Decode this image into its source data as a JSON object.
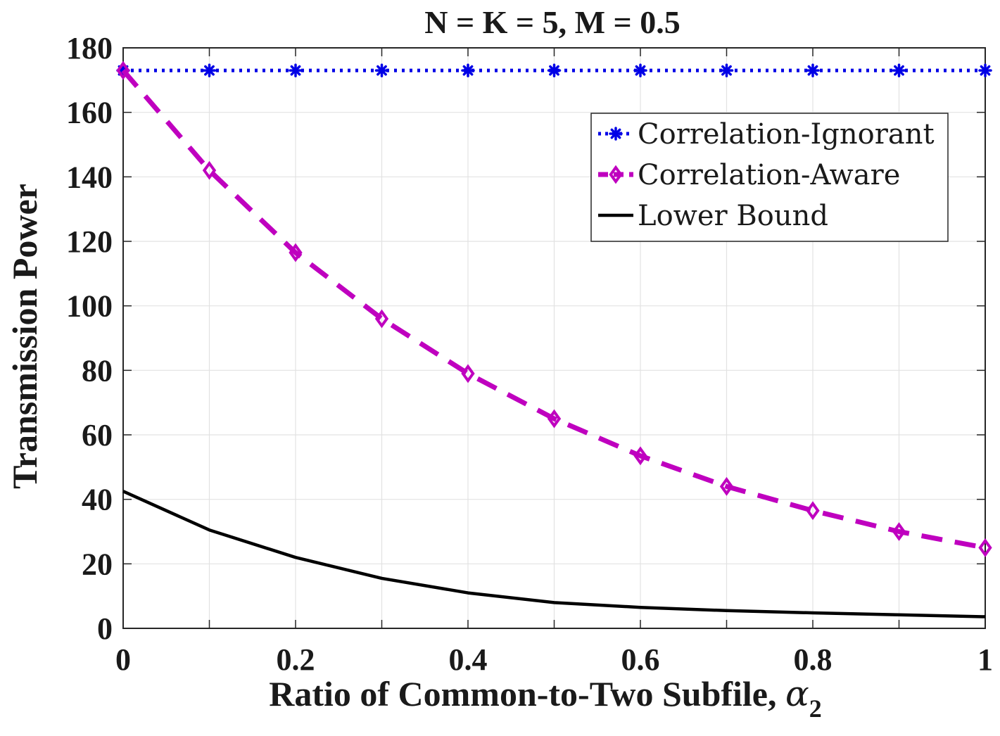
{
  "chart_data": {
    "type": "line",
    "title": "N = K = 5, M = 0.5",
    "xlabel": "Ratio of Common-to-Two Subfile, ",
    "xlabel_symbol": "α",
    "xlabel_subscript": "2",
    "ylabel": "Transmission Power",
    "xlim": [
      0,
      1
    ],
    "ylim": [
      0,
      180
    ],
    "xticks": [
      "0",
      "0.2",
      "0.4",
      "0.6",
      "0.8",
      "1"
    ],
    "yticks": [
      "0",
      "20",
      "40",
      "60",
      "80",
      "100",
      "120",
      "140",
      "160",
      "180"
    ],
    "grid": true,
    "legend_position": "top-right",
    "x": [
      0,
      0.1,
      0.2,
      0.3,
      0.4,
      0.5,
      0.6,
      0.7,
      0.8,
      0.9,
      1.0
    ],
    "series": [
      {
        "name": "Correlation-Ignorant",
        "color": "#0000e6",
        "line_style": "dotted",
        "marker": "asterisk",
        "values": [
          173,
          173,
          173,
          173,
          173,
          173,
          173,
          173,
          173,
          173,
          173
        ]
      },
      {
        "name": "Correlation-Aware",
        "color": "#bf00bf",
        "line_style": "dashed",
        "marker": "diamond",
        "values": [
          173,
          142,
          116.5,
          96,
          79,
          65,
          53.5,
          44,
          36.5,
          30,
          25
        ]
      },
      {
        "name": "Lower Bound",
        "color": "#000000",
        "line_style": "solid",
        "marker": "none",
        "values": [
          42.5,
          30.5,
          22,
          15.5,
          11,
          8,
          6.5,
          5.5,
          4.8,
          4.2,
          3.6
        ]
      }
    ]
  }
}
